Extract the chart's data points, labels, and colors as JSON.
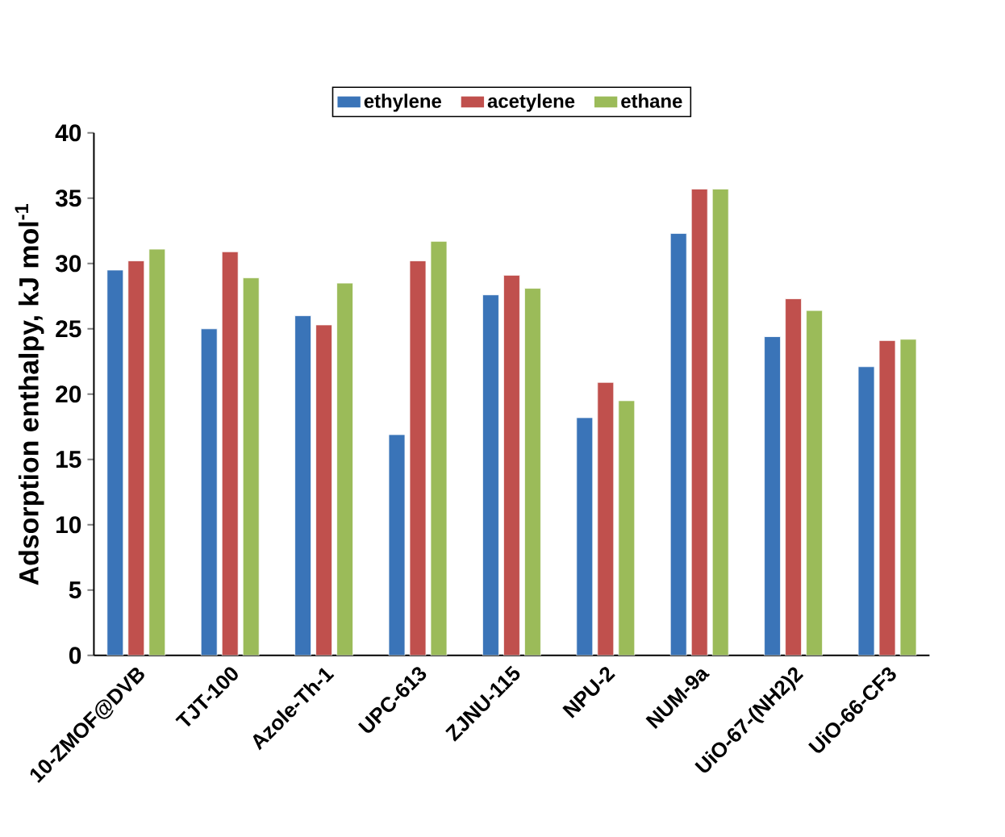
{
  "chart_data": {
    "type": "bar",
    "ylabel": "Adsorption enthalpy, kJ mol$^{-1}$",
    "categories": [
      "10-ZMOF@DVB",
      "TJT-100",
      "Azole-Th-1",
      "UPC-613",
      "ZJNU-115",
      "NPU-2",
      "NUM-9a",
      "UiO-67-(NH2)2",
      "UiO-66-CF3"
    ],
    "series": [
      {
        "name": "ethylene",
        "color": "#3a74b8",
        "values": [
          29.5,
          25.0,
          26.0,
          16.9,
          27.6,
          18.2,
          32.3,
          24.4,
          22.1
        ]
      },
      {
        "name": "acetylene",
        "color": "#c0504d",
        "values": [
          30.2,
          30.9,
          25.3,
          30.2,
          29.1,
          20.9,
          35.7,
          27.3,
          24.1
        ]
      },
      {
        "name": "ethane",
        "color": "#9bbb59",
        "values": [
          31.1,
          28.9,
          28.5,
          31.7,
          28.1,
          19.5,
          35.7,
          26.4,
          24.2
        ]
      }
    ],
    "ylim": [
      0,
      40
    ],
    "yticks": [
      0,
      5,
      10,
      15,
      20,
      25,
      30,
      35,
      40
    ],
    "legend": "top",
    "grid": false
  }
}
